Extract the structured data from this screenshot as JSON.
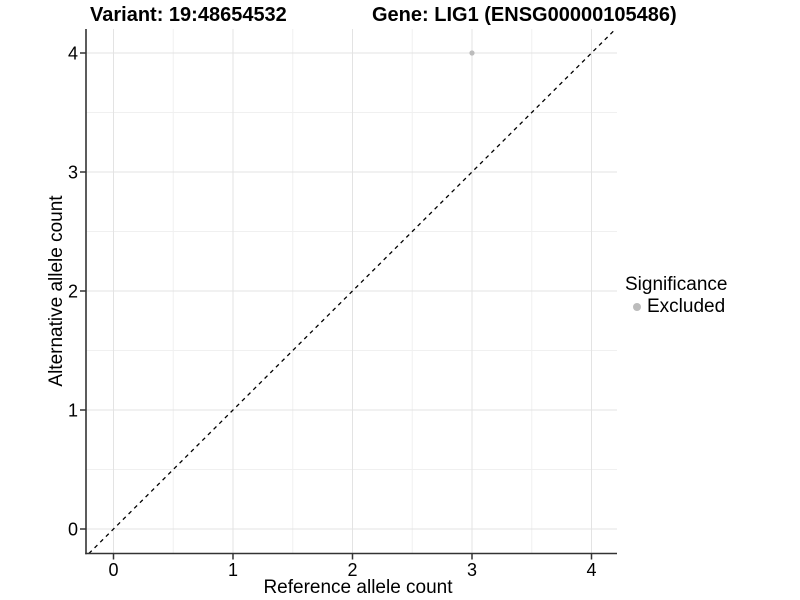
{
  "header": {
    "title_left": "Variant: 19:48654532",
    "title_right": "Gene: LIG1 (ENSG00000105486)"
  },
  "axes": {
    "x_title": "Reference allele count",
    "y_title": "Alternative allele count"
  },
  "legend": {
    "title": "Significance",
    "items": [
      {
        "label": "Excluded",
        "marker": "circle",
        "color": "#bcbcbc"
      }
    ]
  },
  "chart_data": {
    "type": "scatter",
    "title": "Variant: 19:48654532 — Gene: LIG1 (ENSG00000105486)",
    "xlabel": "Reference allele count",
    "ylabel": "Alternative allele count",
    "xlim": [
      -0.23,
      4.21
    ],
    "ylim": [
      -0.21,
      4.2
    ],
    "x_ticks": [
      0,
      1,
      2,
      3,
      4
    ],
    "y_ticks": [
      0,
      1,
      2,
      3,
      4
    ],
    "x_minor_ticks": [
      0.5,
      1.5,
      2.5,
      3.5
    ],
    "y_minor_ticks": [
      0.5,
      1.5,
      2.5,
      3.5
    ],
    "grid": "major+minor",
    "legend_position": "right",
    "series": [
      {
        "name": "Excluded",
        "color": "#bcbcbc",
        "points": [
          [
            3,
            4
          ]
        ]
      }
    ],
    "reference_line": {
      "slope": 1,
      "intercept": 0,
      "style": "dashed",
      "color": "#000000"
    }
  },
  "style": {
    "point_color": "#bcbcbc",
    "grid_major_color": "#e3e3e3",
    "grid_minor_color": "#f0f0f0",
    "axis_color": "#333333",
    "text_color": "#000000"
  }
}
